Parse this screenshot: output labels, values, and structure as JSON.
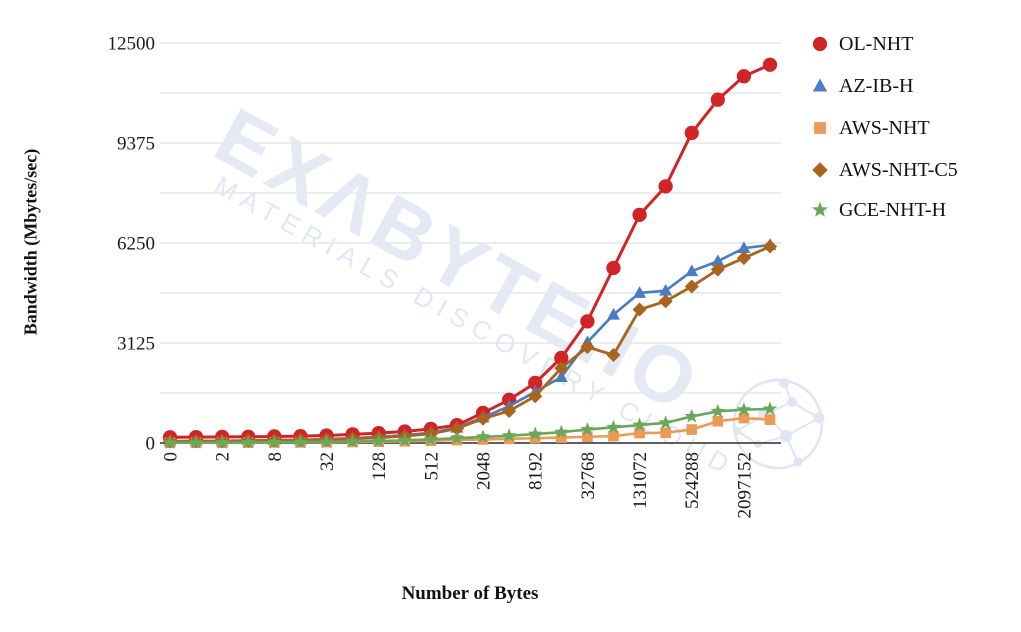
{
  "watermark": {
    "brand": "EXΛBYTE.IO",
    "tagline": "MATERIALS DISCOVERY CLOUD",
    "color": "#e4e9f4"
  },
  "chart_data": {
    "type": "line",
    "title": "",
    "xlabel": "Number of Bytes",
    "ylabel": "Bandwidth (Mbytes/sec)",
    "ylim": [
      0,
      12500
    ],
    "y_major_ticks": [
      12500,
      9375,
      6250,
      3125,
      0
    ],
    "y_minor_step": 1562.5,
    "grid": true,
    "legend_position": "right",
    "x": [
      0,
      1,
      2,
      4,
      8,
      16,
      32,
      64,
      128,
      256,
      512,
      1024,
      2048,
      4096,
      8192,
      16384,
      32768,
      65536,
      131072,
      262144,
      524288,
      1048576,
      2097152,
      4194304
    ],
    "x_tick_labels": [
      "0",
      "2",
      "8",
      "32",
      "128",
      "512",
      "2048",
      "8192",
      "32768",
      "131072",
      "524288",
      "2097152"
    ],
    "series": [
      {
        "name": "OL-NHT",
        "marker": "circle",
        "color": "#d02427",
        "values": [
          180,
          185,
          190,
          195,
          205,
          215,
          235,
          270,
          310,
          360,
          440,
          560,
          940,
          1350,
          1880,
          2660,
          3800,
          5470,
          7130,
          8020,
          9690,
          10730,
          11460,
          11820
        ]
      },
      {
        "name": "AZ-IB-H",
        "marker": "triangle",
        "color": "#4a7bc4",
        "values": [
          60,
          65,
          70,
          80,
          90,
          100,
          120,
          150,
          190,
          250,
          320,
          480,
          800,
          1150,
          1600,
          2060,
          3150,
          4010,
          4690,
          4760,
          5370,
          5680,
          6090,
          6190
        ]
      },
      {
        "name": "AWS-NHT",
        "marker": "square",
        "color": "#eb9b55",
        "values": [
          8,
          10,
          12,
          14,
          17,
          20,
          25,
          32,
          40,
          55,
          70,
          90,
          110,
          130,
          150,
          170,
          195,
          215,
          310,
          320,
          420,
          680,
          780,
          730
        ]
      },
      {
        "name": "AWS-NHT-C5",
        "marker": "diamond",
        "color": "#a9641f",
        "values": [
          50,
          55,
          60,
          70,
          80,
          90,
          105,
          130,
          165,
          215,
          290,
          450,
          760,
          1000,
          1460,
          2340,
          3000,
          2750,
          4170,
          4430,
          4890,
          5420,
          5780,
          6140
        ]
      },
      {
        "name": "GCE-NHT-H",
        "marker": "star",
        "color": "#67a85c",
        "values": [
          10,
          12,
          15,
          18,
          22,
          28,
          35,
          45,
          60,
          85,
          110,
          150,
          190,
          230,
          280,
          340,
          420,
          490,
          560,
          630,
          830,
          990,
          1040,
          1065
        ]
      }
    ]
  },
  "style": {
    "grid_color": "#dadada",
    "axis_color": "#5f5f5f",
    "tick_text_color": "#1a1a1a"
  }
}
